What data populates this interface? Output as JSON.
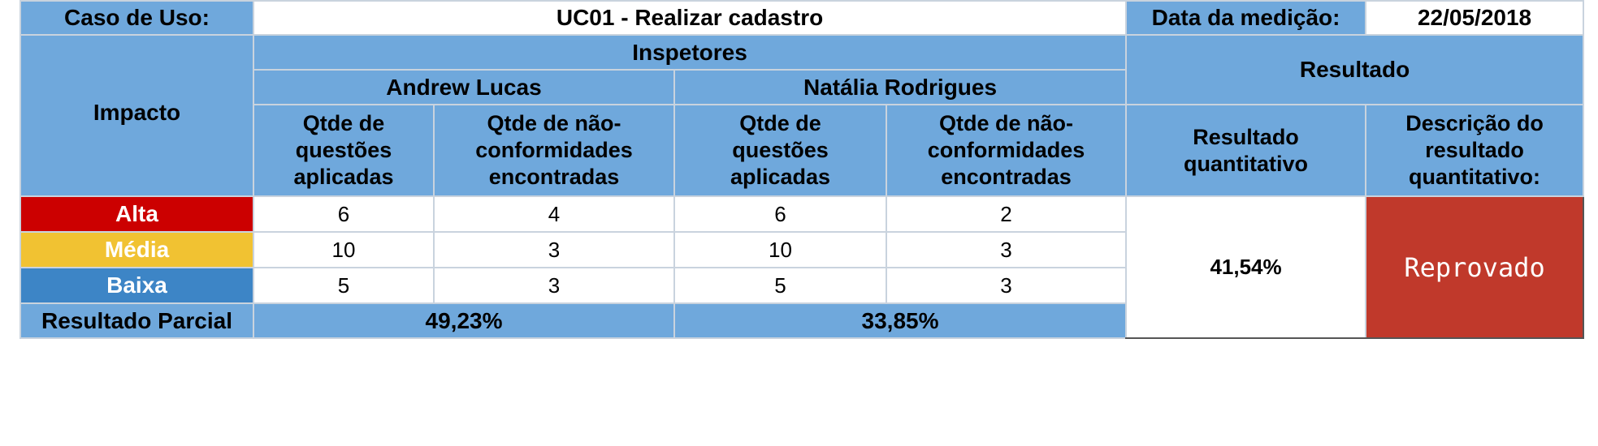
{
  "header": {
    "use_case_label": "Caso de Uso:",
    "use_case_value": "UC01 - Realizar cadastro",
    "date_label": "Data da medição:",
    "date_value": "22/05/2018"
  },
  "columns": {
    "impact_label": "Impacto",
    "inspectors_label": "Inspetores",
    "result_label": "Resultado",
    "inspectors": [
      {
        "name": "Andrew Lucas",
        "applied_label": "Qtde de questões aplicadas",
        "nonconf_label": "Qtde de não-conformidades encontradas"
      },
      {
        "name": "Natália Rodrigues",
        "applied_label": "Qtde de questões aplicadas",
        "nonconf_label": "Qtde de não-conformidades encontradas"
      }
    ],
    "quant_result_label": "Resultado quantitativo",
    "desc_result_label": "Descrição do resultado quantitativo:"
  },
  "rows": [
    {
      "impact": "Alta",
      "color": "#cc0000",
      "andrew_applied": "6",
      "andrew_nonconf": "4",
      "natalia_applied": "6",
      "natalia_nonconf": "2"
    },
    {
      "impact": "Média",
      "color": "#f1c232",
      "andrew_applied": "10",
      "andrew_nonconf": "3",
      "natalia_applied": "10",
      "natalia_nonconf": "3"
    },
    {
      "impact": "Baixa",
      "color": "#3d85c6",
      "andrew_applied": "5",
      "andrew_nonconf": "3",
      "natalia_applied": "5",
      "natalia_nonconf": "3"
    }
  ],
  "partial": {
    "label": "Resultado Parcial",
    "andrew": "49,23%",
    "natalia": "33,85%"
  },
  "result": {
    "quantitative": "41,54%",
    "description": "Reprovado",
    "description_color": "#c0392b"
  },
  "colors": {
    "header_bg": "#6fa8dc",
    "border": "#c9d3de"
  }
}
